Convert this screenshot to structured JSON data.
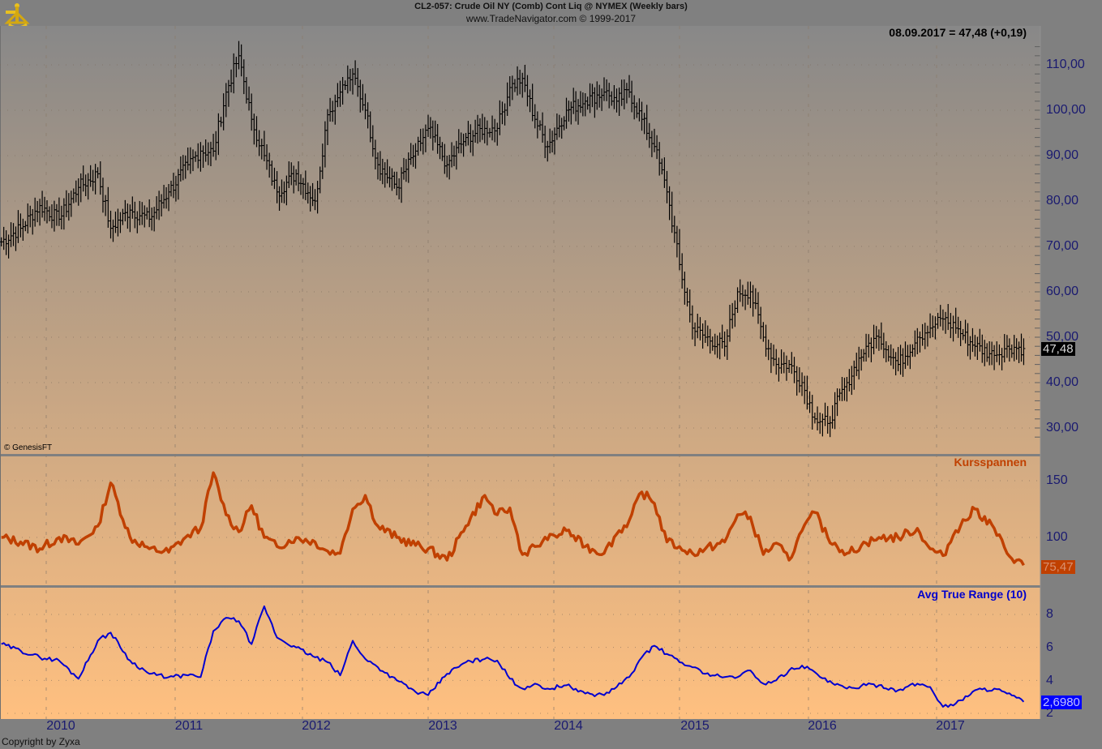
{
  "header": {
    "title": "CL2-057:  Crude Oil NY (Comb) Cont Liq @ NYMEX  (Weekly bars)",
    "subtitle": "www.TradeNavigator.com © 1999-2017",
    "logo_icon": "sextant-icon"
  },
  "last_quote": "08.09.2017 = 47,48 (+0,19)",
  "footer": {
    "genesis": "© GenesisFT",
    "zyxa": "Copyright by Zyxa"
  },
  "colors": {
    "background": "#808080",
    "pane_top": "#8a8a8a",
    "pane_bottom": "#ffc080",
    "price_bars": "#000000",
    "kursspannen": "#c04000",
    "atr": "#0000d0",
    "axis_text": "#1a1a70",
    "last_price_tag": "#000000",
    "kurs_tag": "#c04000",
    "atr_tag": "#0000ff"
  },
  "price_axis": {
    "labels": [
      "110,00",
      "100,00",
      "90,00",
      "80,00",
      "70,00",
      "60,00",
      "50,00",
      "40,00",
      "30,00"
    ],
    "last_tag": "47,48"
  },
  "kurs_axis": {
    "labels": [
      "150",
      "100"
    ],
    "last_tag": "75,47"
  },
  "atr_axis": {
    "labels": [
      "8",
      "6",
      "4",
      "2"
    ],
    "last_tag": "2,6980"
  },
  "x_axis": {
    "labels": [
      "2010",
      "2011",
      "2012",
      "2013",
      "2014",
      "2015",
      "2016",
      "2017"
    ]
  },
  "chart_data": [
    {
      "type": "line",
      "title": "CL2-057: Crude Oil NY (Comb) Cont Liq @ NYMEX (Weekly bars)",
      "subtitle": "Price (weekly OHLC bars, approximated by closes)",
      "xlabel": "",
      "ylabel": "Price",
      "ylim": [
        25,
        116
      ],
      "grid": true,
      "x": [
        "2009.65",
        "2009.8",
        "2009.95",
        "2010.1",
        "2010.25",
        "2010.4",
        "2010.5",
        "2010.65",
        "2010.8",
        "2010.95",
        "2011.1",
        "2011.2",
        "2011.3",
        "2011.4",
        "2011.5",
        "2011.6",
        "2011.7",
        "2011.8",
        "2011.95",
        "2012.1",
        "2012.2",
        "2012.3",
        "2012.4",
        "2012.5",
        "2012.6",
        "2012.75",
        "2012.9",
        "2013.0",
        "2013.15",
        "2013.3",
        "2013.45",
        "2013.55",
        "2013.65",
        "2013.75",
        "2013.85",
        "2013.95",
        "2014.1",
        "2014.25",
        "2014.4",
        "2014.5",
        "2014.6",
        "2014.7",
        "2014.8",
        "2014.9",
        "2015.0",
        "2015.1",
        "2015.2",
        "2015.35",
        "2015.45",
        "2015.55",
        "2015.65",
        "2015.75",
        "2015.85",
        "2015.95",
        "2016.05",
        "2016.15",
        "2016.3",
        "2016.45",
        "2016.55",
        "2016.7",
        "2016.85",
        "2016.95",
        "2017.05",
        "2017.15",
        "2017.3",
        "2017.45",
        "2017.55",
        "2017.68"
      ],
      "series": [
        {
          "name": "Close",
          "values": [
            71,
            74,
            79,
            76,
            83,
            86,
            74,
            78,
            76,
            82,
            88,
            91,
            91,
            104,
            112,
            98,
            90,
            82,
            86,
            80,
            99,
            104,
            108,
            100,
            88,
            83,
            91,
            96,
            88,
            94,
            96,
            96,
            105,
            107,
            98,
            92,
            100,
            102,
            104,
            102,
            104,
            98,
            92,
            82,
            66,
            52,
            50,
            48,
            60,
            60,
            50,
            44,
            44,
            40,
            32,
            31,
            40,
            48,
            50,
            44,
            50,
            52,
            54,
            52,
            48,
            46,
            48,
            47.5
          ]
        }
      ]
    },
    {
      "type": "line",
      "title": "Kursspannen",
      "ylim": [
        70,
        165
      ],
      "grid": true,
      "series": [
        {
          "name": "Kursspannen",
          "values": [
            100,
            96,
            90,
            100,
            94,
            110,
            148,
            100,
            90,
            87,
            102,
            108,
            157,
            120,
            105,
            128,
            100,
            92,
            100,
            96,
            88,
            86,
            125,
            137,
            110,
            100,
            93,
            90,
            80,
            110,
            137,
            120,
            126,
            85,
            92,
            98,
            106,
            92,
            86,
            103,
            115,
            140,
            130,
            96,
            92,
            86,
            90,
            96,
            120,
            118,
            85,
            95,
            80,
            106,
            122,
            100,
            86,
            95,
            100,
            100,
            108,
            90,
            84,
            106,
            125,
            108,
            86,
            75.47
          ]
        }
      ]
    },
    {
      "type": "line",
      "title": "Avg True Range (10)",
      "ylim": [
        2,
        9
      ],
      "grid": true,
      "series": [
        {
          "name": "ATR(10)",
          "values": [
            6.2,
            5.8,
            5.4,
            5.2,
            4.1,
            6.4,
            6.9,
            5.2,
            4.4,
            4.2,
            4.3,
            4.2,
            7.0,
            7.8,
            7.6,
            6.2,
            8.5,
            6.6,
            6.0,
            5.4,
            5.1,
            4.3,
            6.4,
            5.3,
            4.8,
            4.0,
            3.3,
            3.1,
            4.4,
            5.1,
            5.3,
            5.2,
            4.1,
            3.5,
            3.8,
            3.5,
            3.7,
            3.2,
            3.1,
            3.6,
            4.2,
            5.4,
            6.1,
            5.6,
            5.1,
            4.8,
            4.4,
            4.2,
            4.2,
            4.6,
            3.8,
            4.0,
            4.6,
            4.9,
            4.5,
            3.9,
            3.5,
            3.7,
            3.7,
            3.4,
            3.8,
            3.6,
            2.4,
            2.6,
            3.4,
            3.5,
            3.2,
            2.698
          ]
        }
      ]
    }
  ]
}
